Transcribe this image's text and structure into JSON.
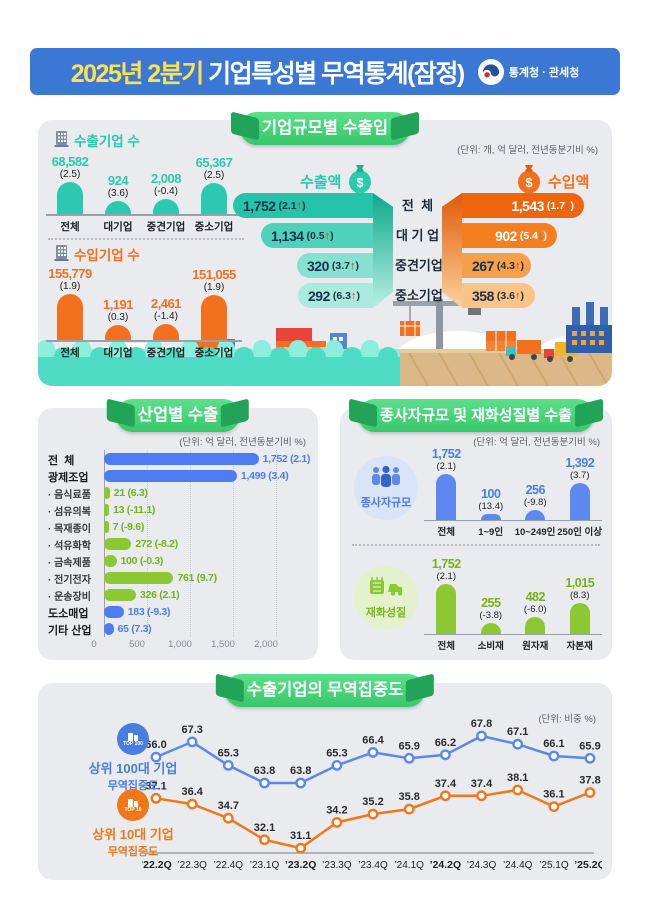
{
  "header": {
    "title_highlight": "2025년 2분기",
    "title_rest": " 기업특성별 무역통계(잠정)",
    "logo_text": "통계청 · 관세청"
  },
  "panels": {
    "size": {
      "badge": "기업규모별 수출입",
      "unit": "(단위: 개, 억 달러, 전년동분기비 %)",
      "export_companies_title": "수출기업 수",
      "import_companies_title": "수입기업 수",
      "export_value_title": "수출액",
      "import_value_title": "수입액"
    },
    "industry": {
      "badge": "산업별 수출",
      "unit": "(단위: 억 달러, 전년동분기비 %)"
    },
    "worker_goods": {
      "badge": "종사자규모 및 재화성질별 수출",
      "unit": "(단위: 억 달러, 전년동분기비 %)",
      "worker_label": "종사자규모",
      "goods_label": "재화성질"
    },
    "concentration": {
      "badge": "수출기업의 무역집중도",
      "unit": "(단위: 비중 %)",
      "legend_top100_badge": "TOP 100",
      "legend_top100_line1": "상위 100대 기업",
      "legend_top100_line2": "무역집중도",
      "legend_top10_badge": "TOP 10",
      "legend_top10_line1": "상위 10대 기업",
      "legend_top10_line2": "무역집중도"
    }
  },
  "colors": {
    "header_blue": "#3b78d6",
    "highlight_yellow": "#ffe14d",
    "teal": "#2bc9ad",
    "orange": "#f3701f",
    "navy_text": "#15324e",
    "funnel_teal": [
      "#25c3a7",
      "#4fd2bb",
      "#86e1d0",
      "#abebdf"
    ],
    "funnel_orange": [
      "#ee650f",
      "#f37f1e",
      "#f7a04c",
      "#fbc386"
    ],
    "industry_blue": "#4e7cf0",
    "industry_green": "#8cc832",
    "industry_green_text": "#74b319",
    "worker_blue": "#5c88f0",
    "worker_blue_text": "#4a7de8",
    "goods_green": "#8cc832",
    "goods_green_text": "#74b319",
    "line_blue": "#5c88e8",
    "line_orange": "#f07818",
    "up_red": "#e02f24",
    "down_blue": "#3f7ce0"
  },
  "chart_data": [
    {
      "id": "export_companies",
      "type": "bar",
      "title": "수출기업 수",
      "categories": [
        "전체",
        "대기업",
        "중견기업",
        "중소기업"
      ],
      "values": [
        68582,
        924,
        2008,
        65367
      ],
      "yoy_pct": [
        2.5,
        3.6,
        -0.4,
        2.5
      ],
      "ylabel": "개",
      "grid": false
    },
    {
      "id": "import_companies",
      "type": "bar",
      "title": "수입기업 수",
      "categories": [
        "전체",
        "대기업",
        "중견기업",
        "중소기업"
      ],
      "values": [
        155779,
        1191,
        2461,
        151055
      ],
      "yoy_pct": [
        1.9,
        0.3,
        -1.4,
        1.9
      ],
      "ylabel": "개",
      "grid": false
    },
    {
      "id": "export_value",
      "type": "bar",
      "title": "수출액",
      "categories": [
        "전  체",
        "대 기 업",
        "중견기업",
        "중소기업"
      ],
      "values": [
        1752,
        1134,
        320,
        292
      ],
      "yoy_pct": [
        2.1,
        0.5,
        3.7,
        6.3
      ],
      "ylabel": "억 달러",
      "grid": false
    },
    {
      "id": "import_value",
      "type": "bar",
      "title": "수입액",
      "categories": [
        "전  체",
        "대 기 업",
        "중견기업",
        "중소기업"
      ],
      "values": [
        1543,
        902,
        267,
        358
      ],
      "yoy_pct": [
        -1.7,
        -5.4,
        4.3,
        3.6
      ],
      "ylabel": "억 달러",
      "grid": false
    },
    {
      "id": "industry_export",
      "type": "bar",
      "title": "산업별 수출",
      "categories": [
        "전  체",
        "광제조업",
        "음식료품",
        "섬유의복",
        "목재종이",
        "석유화학",
        "금속제품",
        "전기전자",
        "운송장비",
        "도소매업",
        "기타 산업"
      ],
      "is_sub": [
        false,
        false,
        true,
        true,
        true,
        true,
        true,
        true,
        true,
        false,
        false
      ],
      "values": [
        1752,
        1499,
        21,
        13,
        7,
        272,
        100,
        761,
        326,
        183,
        65
      ],
      "yoy_pct": [
        2.1,
        3.4,
        6.3,
        -11.1,
        -9.6,
        -8.2,
        -0.3,
        9.7,
        2.1,
        -9.3,
        7.3
      ],
      "xlim": [
        0,
        2000
      ],
      "xticks": [
        "0",
        "500",
        "1,000",
        "1,500",
        "2,000"
      ],
      "grid": true
    },
    {
      "id": "export_by_workers",
      "type": "bar",
      "title": "종사자규모",
      "categories": [
        "전체",
        "1~9인",
        "10~249인",
        "250인 이상"
      ],
      "values": [
        1752,
        100,
        256,
        1392
      ],
      "yoy_pct": [
        2.1,
        13.4,
        -9.8,
        3.7
      ],
      "ylabel": "억 달러",
      "grid": false
    },
    {
      "id": "export_by_goods",
      "type": "bar",
      "title": "재화성질",
      "categories": [
        "전체",
        "소비재",
        "원자재",
        "자본재"
      ],
      "values": [
        1752,
        255,
        482,
        1015
      ],
      "yoy_pct": [
        2.1,
        -3.8,
        -6.0,
        8.3
      ],
      "ylabel": "억 달러",
      "grid": false
    },
    {
      "id": "trade_concentration",
      "type": "line",
      "x": [
        "’22.2Q",
        "’22.3Q",
        "’22.4Q",
        "’23.1Q",
        "’23.2Q",
        "’23.3Q",
        "’23.4Q",
        "’24.1Q",
        "’24.2Q",
        "’24.3Q",
        "’24.4Q",
        "’25.1Q",
        "’25.2Q"
      ],
      "bold_x": [
        0,
        4,
        8,
        12
      ],
      "ylabel": "비중 %",
      "series": [
        {
          "name": "상위 100대 기업 무역집중도",
          "values": [
            66.0,
            67.3,
            65.3,
            63.8,
            63.8,
            65.3,
            66.4,
            65.9,
            66.2,
            67.8,
            67.1,
            66.1,
            65.9
          ]
        },
        {
          "name": "상위 10대 기업 무역집중도",
          "values": [
            37.1,
            36.4,
            34.7,
            32.1,
            31.1,
            34.2,
            35.2,
            35.8,
            37.4,
            37.4,
            38.1,
            36.1,
            37.8
          ]
        }
      ]
    }
  ]
}
